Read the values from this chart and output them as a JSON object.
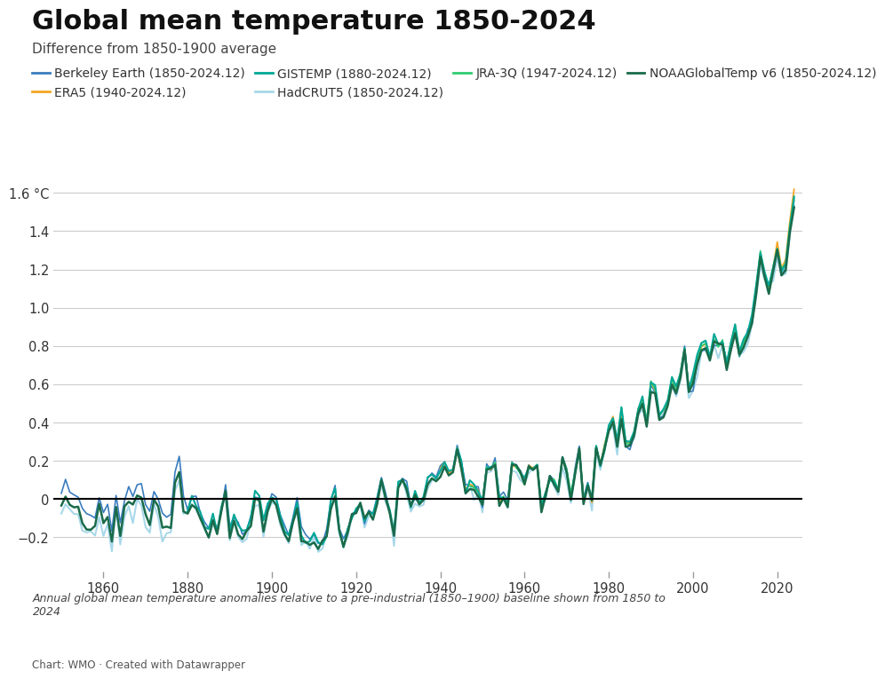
{
  "title": "Global mean temperature 1850-2024",
  "subtitle": "Difference from 1850-1900 average",
  "caption": "Annual global mean temperature anomalies relative to a pre-industrial (1850–1900) baseline shown from 1850 to\n2024",
  "source": "Chart: WMO · Created with Datawrapper",
  "ylim": [
    -0.38,
    1.72
  ],
  "yticks": [
    -0.2,
    0.0,
    0.2,
    0.4,
    0.6,
    0.8,
    1.0,
    1.2,
    1.4,
    1.6
  ],
  "ytick_labels": [
    "−0.2",
    "0",
    "0.2",
    "0.4",
    "0.6",
    "0.8",
    "1.0",
    "1.2",
    "1.4",
    "1.6 °C"
  ],
  "xticks": [
    1860,
    1880,
    1900,
    1920,
    1940,
    1960,
    1980,
    2000,
    2020
  ],
  "xlim": [
    1848,
    2026
  ],
  "series": [
    {
      "name": "Berkeley Earth (1850-2024.12)",
      "color": "#3a7dbf",
      "lw": 1.2,
      "zorder": 3,
      "start_year": 1850
    },
    {
      "name": "ERA5 (1940-2024.12)",
      "color": "#f5a623",
      "lw": 1.3,
      "zorder": 4,
      "start_year": 1940
    },
    {
      "name": "GISTEMP (1880-2024.12)",
      "color": "#00a896",
      "lw": 1.5,
      "zorder": 5,
      "start_year": 1880
    },
    {
      "name": "HadCRUT5 (1850-2024.12)",
      "color": "#a8d8ea",
      "lw": 1.5,
      "zorder": 2,
      "start_year": 1850
    },
    {
      "name": "JRA-3Q (1947-2024.12)",
      "color": "#2ecc71",
      "lw": 1.2,
      "zorder": 4,
      "start_year": 1947
    },
    {
      "name": "NOAAGlobalTemp v6 (1850-2024.12)",
      "color": "#1a6b4a",
      "lw": 1.8,
      "zorder": 6,
      "start_year": 1850
    }
  ],
  "background_color": "#ffffff",
  "grid_color": "#cccccc",
  "title_fontsize": 22,
  "subtitle_fontsize": 11,
  "axis_fontsize": 10.5,
  "legend_fontsize": 10
}
